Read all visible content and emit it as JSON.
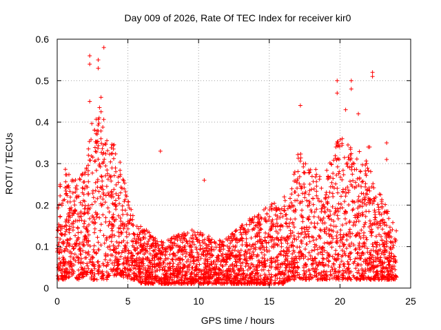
{
  "chart_data": {
    "type": "scatter",
    "title": "Day 009 of 2026, Rate Of TEC Index for receiver kir0",
    "xlabel": "GPS time / hours",
    "ylabel": "ROTI / TECUs",
    "xlim": [
      0,
      25
    ],
    "ylim": [
      0,
      0.6
    ],
    "xticks": [
      0,
      5,
      10,
      15,
      20,
      25
    ],
    "xtick_labels": [
      "0",
      "5",
      "10",
      "15",
      "20",
      "25"
    ],
    "yticks": [
      0,
      0.1,
      0.2,
      0.3,
      0.4,
      0.5,
      0.6
    ],
    "ytick_labels": [
      "0",
      "0.1",
      "0.2",
      "0.3",
      "0.4",
      "0.5",
      "0.6"
    ],
    "grid": true,
    "marker": "+",
    "color": "#ff0000",
    "series": [
      {
        "name": "ROTI",
        "x_range": [
          0,
          24
        ],
        "density_note": "dense per-epoch samples; envelope estimated from figure",
        "envelope_hours": [
          0,
          0.5,
          1,
          1.5,
          2,
          2.5,
          3,
          3.5,
          4,
          4.5,
          5,
          5.5,
          6,
          7,
          8,
          9,
          10,
          11,
          12,
          13,
          14,
          15,
          16,
          16.5,
          17,
          17.5,
          18,
          18.5,
          19,
          19.5,
          20,
          20.5,
          21,
          21.5,
          22,
          22.5,
          23,
          23.5,
          24
        ],
        "envelope_upper": [
          0.25,
          0.3,
          0.26,
          0.27,
          0.3,
          0.42,
          0.45,
          0.38,
          0.35,
          0.3,
          0.22,
          0.16,
          0.15,
          0.12,
          0.12,
          0.14,
          0.14,
          0.12,
          0.12,
          0.15,
          0.18,
          0.2,
          0.22,
          0.22,
          0.35,
          0.3,
          0.3,
          0.28,
          0.28,
          0.32,
          0.38,
          0.35,
          0.33,
          0.33,
          0.3,
          0.26,
          0.22,
          0.18,
          0.15
        ],
        "envelope_lower": [
          0.02,
          0.02,
          0.03,
          0.02,
          0.03,
          0.02,
          0.02,
          0.02,
          0.03,
          0.03,
          0.02,
          0.02,
          0.01,
          0.01,
          0.01,
          0.01,
          0.01,
          0.01,
          0.01,
          0.01,
          0.01,
          0.01,
          0.01,
          0.02,
          0.02,
          0.02,
          0.02,
          0.02,
          0.02,
          0.02,
          0.02,
          0.02,
          0.02,
          0.02,
          0.02,
          0.02,
          0.02,
          0.02,
          0.02
        ],
        "outliers": [
          {
            "x": 2.3,
            "y": 0.56
          },
          {
            "x": 2.3,
            "y": 0.54
          },
          {
            "x": 2.9,
            "y": 0.55
          },
          {
            "x": 2.9,
            "y": 0.53
          },
          {
            "x": 3.3,
            "y": 0.58
          },
          {
            "x": 3.1,
            "y": 0.46
          },
          {
            "x": 2.3,
            "y": 0.45
          },
          {
            "x": 7.3,
            "y": 0.33
          },
          {
            "x": 10.4,
            "y": 0.26
          },
          {
            "x": 17.2,
            "y": 0.44
          },
          {
            "x": 19.8,
            "y": 0.5
          },
          {
            "x": 19.8,
            "y": 0.47
          },
          {
            "x": 20.8,
            "y": 0.5
          },
          {
            "x": 20.8,
            "y": 0.48
          },
          {
            "x": 22.3,
            "y": 0.52
          },
          {
            "x": 22.3,
            "y": 0.51
          },
          {
            "x": 20.4,
            "y": 0.43
          },
          {
            "x": 21.3,
            "y": 0.42
          },
          {
            "x": 22.0,
            "y": 0.34
          },
          {
            "x": 22.1,
            "y": 0.34
          },
          {
            "x": 23.3,
            "y": 0.35
          },
          {
            "x": 23.3,
            "y": 0.31
          }
        ]
      }
    ]
  }
}
